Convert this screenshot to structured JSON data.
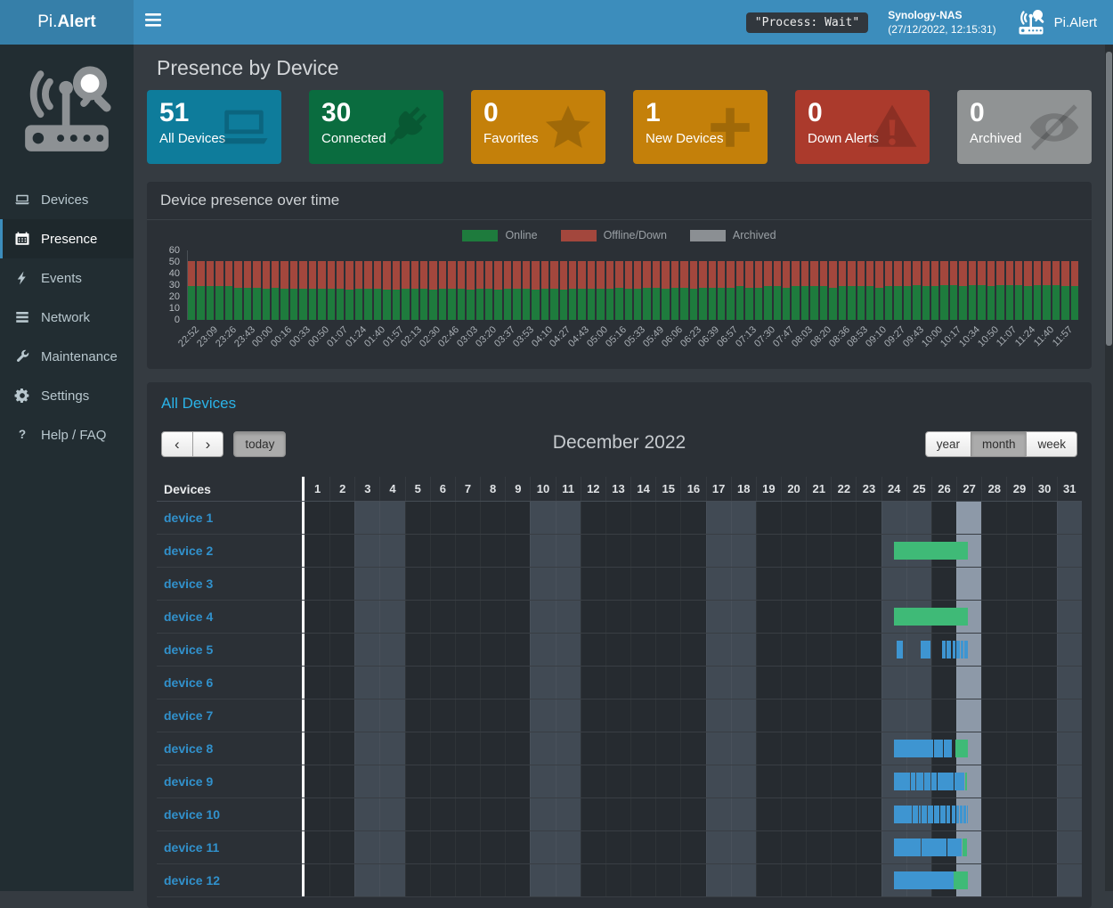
{
  "header": {
    "brand_prefix": "Pi.",
    "brand_bold": "Alert",
    "process_status": "\"Process: Wait\"",
    "host_name": "Synology-NAS",
    "host_time": "(27/12/2022, 12:15:31)",
    "app_name": "Pi.Alert"
  },
  "sidebar": {
    "items": [
      {
        "label": "Devices",
        "icon": "devices-icon",
        "active": false
      },
      {
        "label": "Presence",
        "icon": "presence-icon",
        "active": true
      },
      {
        "label": "Events",
        "icon": "events-icon",
        "active": false
      },
      {
        "label": "Network",
        "icon": "network-icon",
        "active": false
      },
      {
        "label": "Maintenance",
        "icon": "maintenance-icon",
        "active": false
      },
      {
        "label": "Settings",
        "icon": "settings-icon",
        "active": false
      },
      {
        "label": "Help / FAQ",
        "icon": "help-icon",
        "active": false
      }
    ]
  },
  "page": {
    "title": "Presence by Device"
  },
  "stats": [
    {
      "value": "51",
      "label": "All Devices",
      "color": "#0e7c9b",
      "icon": "laptop-icon"
    },
    {
      "value": "30",
      "label": "Connected",
      "color": "#0a6c3f",
      "icon": "plug-icon"
    },
    {
      "value": "0",
      "label": "Favorites",
      "color": "#c4800a",
      "icon": "star-icon"
    },
    {
      "value": "1",
      "label": "New Devices",
      "color": "#c4800a",
      "icon": "plus-icon"
    },
    {
      "value": "0",
      "label": "Down Alerts",
      "color": "#ab3a2c",
      "icon": "warning-icon"
    },
    {
      "value": "0",
      "label": "Archived",
      "color": "#909394",
      "icon": "eye-slash-icon"
    }
  ],
  "chart_panel": {
    "title": "Device presence over time"
  },
  "chart_data": {
    "type": "bar",
    "stacked": true,
    "title": "Device presence over time",
    "xlabel": "",
    "ylabel": "",
    "ylim": [
      0,
      60
    ],
    "yticks": [
      0,
      10,
      20,
      30,
      40,
      50,
      60
    ],
    "legend_position": "top-center",
    "grid": false,
    "bars_per_label": 2,
    "x_labels": [
      "22:52",
      "23:09",
      "23:26",
      "23:43",
      "00:00",
      "00:16",
      "00:33",
      "00:50",
      "01:07",
      "01:24",
      "01:40",
      "01:57",
      "02:13",
      "02:30",
      "02:46",
      "03:03",
      "03:20",
      "03:37",
      "03:53",
      "04:10",
      "04:27",
      "04:43",
      "05:00",
      "05:16",
      "05:33",
      "05:49",
      "06:06",
      "06:23",
      "06:39",
      "06:57",
      "07:13",
      "07:30",
      "07:47",
      "08:03",
      "08:20",
      "08:36",
      "08:53",
      "09:10",
      "09:27",
      "09:43",
      "10:00",
      "10:17",
      "10:34",
      "10:50",
      "11:07",
      "11:24",
      "11:40",
      "11:57"
    ],
    "series": [
      {
        "name": "Online",
        "color": "#1e7b3d",
        "values": [
          29,
          29,
          29,
          29,
          29,
          28,
          28,
          28,
          27,
          28,
          27,
          27,
          27,
          27,
          27,
          27,
          27,
          26,
          27,
          27,
          27,
          26,
          26,
          27,
          27,
          27,
          26,
          27,
          27,
          27,
          26,
          27,
          27,
          26,
          27,
          27,
          27,
          26,
          27,
          27,
          26,
          27,
          27,
          27,
          27,
          27,
          28,
          27,
          27,
          28,
          28,
          27,
          28,
          28,
          27,
          28,
          28,
          28,
          28,
          29,
          28,
          28,
          29,
          29,
          28,
          29,
          29,
          29,
          29,
          28,
          29,
          29,
          29,
          29,
          28,
          29,
          29,
          29,
          30,
          29,
          29,
          30,
          30,
          29,
          30,
          30,
          29,
          30,
          30,
          30,
          29,
          30,
          30,
          30,
          29,
          29
        ]
      },
      {
        "name": "Offline/Down",
        "color": "#a3473d",
        "values": [
          22,
          22,
          22,
          22,
          22,
          23,
          23,
          23,
          24,
          23,
          24,
          24,
          24,
          24,
          24,
          24,
          24,
          25,
          24,
          24,
          24,
          25,
          25,
          24,
          24,
          24,
          25,
          24,
          24,
          24,
          25,
          24,
          24,
          25,
          24,
          24,
          24,
          25,
          24,
          24,
          25,
          24,
          24,
          24,
          24,
          24,
          23,
          24,
          24,
          23,
          23,
          24,
          23,
          23,
          24,
          23,
          23,
          23,
          23,
          22,
          23,
          23,
          22,
          22,
          23,
          22,
          22,
          22,
          22,
          23,
          22,
          22,
          22,
          22,
          23,
          22,
          22,
          22,
          21,
          22,
          22,
          21,
          21,
          22,
          21,
          21,
          22,
          21,
          21,
          21,
          22,
          21,
          21,
          21,
          22,
          22
        ]
      },
      {
        "name": "Archived",
        "color": "#8b8f93",
        "values": [
          0,
          0,
          0,
          0,
          0,
          0,
          0,
          0,
          0,
          0,
          0,
          0,
          0,
          0,
          0,
          0,
          0,
          0,
          0,
          0,
          0,
          0,
          0,
          0,
          0,
          0,
          0,
          0,
          0,
          0,
          0,
          0,
          0,
          0,
          0,
          0,
          0,
          0,
          0,
          0,
          0,
          0,
          0,
          0,
          0,
          0,
          0,
          0,
          0,
          0,
          0,
          0,
          0,
          0,
          0,
          0,
          0,
          0,
          0,
          0,
          0,
          0,
          0,
          0,
          0,
          0,
          0,
          0,
          0,
          0,
          0,
          0,
          0,
          0,
          0,
          0,
          0,
          0,
          0,
          0,
          0,
          0,
          0,
          0,
          0,
          0,
          0,
          0,
          0,
          0,
          0,
          0,
          0,
          0,
          0,
          0
        ]
      }
    ]
  },
  "calendar": {
    "title": "All Devices",
    "toolbar": {
      "prev": "‹",
      "next": "›",
      "today_label": "today",
      "view_title": "December 2022",
      "views": [
        "year",
        "month",
        "week"
      ],
      "active_view": "month"
    },
    "table": {
      "devices_header": "Devices",
      "days": [
        1,
        2,
        3,
        4,
        5,
        6,
        7,
        8,
        9,
        10,
        11,
        12,
        13,
        14,
        15,
        16,
        17,
        18,
        19,
        20,
        21,
        22,
        23,
        24,
        25,
        26,
        27,
        28,
        29,
        30,
        31
      ],
      "weekend_days": [
        3,
        4,
        10,
        11,
        17,
        18,
        24,
        25,
        31
      ],
      "today_day": 27
    },
    "devices": [
      {
        "name": "device 1",
        "segments": []
      },
      {
        "name": "device 2",
        "segments": [
          {
            "from": 24.52,
            "to": 27.47,
            "color": "green"
          }
        ]
      },
      {
        "name": "device 3",
        "segments": []
      },
      {
        "name": "device 4",
        "segments": [
          {
            "from": 24.52,
            "to": 27.47,
            "color": "green"
          }
        ]
      },
      {
        "name": "device 5",
        "segments": [
          {
            "from": 24.6,
            "to": 24.85,
            "color": "blue"
          },
          {
            "from": 25.58,
            "to": 25.97,
            "color": "blue"
          },
          {
            "from": 26.42,
            "to": 26.56,
            "color": "blue"
          },
          {
            "from": 26.61,
            "to": 26.79,
            "color": "blue"
          },
          {
            "from": 26.86,
            "to": 26.96,
            "color": "blue"
          },
          {
            "from": 27.01,
            "to": 27.13,
            "color": "blue"
          },
          {
            "from": 27.17,
            "to": 27.27,
            "color": "blue"
          },
          {
            "from": 27.31,
            "to": 27.46,
            "color": "blue"
          }
        ]
      },
      {
        "name": "device 6",
        "segments": []
      },
      {
        "name": "device 7",
        "segments": []
      },
      {
        "name": "device 8",
        "segments": [
          {
            "from": 24.52,
            "to": 25.7,
            "color": "blue"
          },
          {
            "from": 25.73,
            "to": 26.08,
            "color": "blue"
          },
          {
            "from": 26.11,
            "to": 26.45,
            "color": "blue"
          },
          {
            "from": 26.48,
            "to": 26.82,
            "color": "blue"
          },
          {
            "from": 26.95,
            "to": 27.45,
            "color": "green"
          }
        ]
      },
      {
        "name": "device 9",
        "segments": [
          {
            "from": 24.52,
            "to": 25.15,
            "color": "blue"
          },
          {
            "from": 25.18,
            "to": 25.36,
            "color": "blue"
          },
          {
            "from": 25.39,
            "to": 25.68,
            "color": "blue"
          },
          {
            "from": 25.71,
            "to": 25.98,
            "color": "blue"
          },
          {
            "from": 26.01,
            "to": 26.21,
            "color": "blue"
          },
          {
            "from": 26.24,
            "to": 26.59,
            "color": "blue"
          },
          {
            "from": 26.62,
            "to": 26.89,
            "color": "blue"
          },
          {
            "from": 26.92,
            "to": 27.12,
            "color": "blue"
          },
          {
            "from": 27.15,
            "to": 27.31,
            "color": "blue"
          },
          {
            "from": 27.34,
            "to": 27.42,
            "color": "green"
          }
        ]
      },
      {
        "name": "device 10",
        "segments": [
          {
            "from": 24.52,
            "to": 25.22,
            "color": "blue"
          },
          {
            "from": 25.26,
            "to": 25.46,
            "color": "blue"
          },
          {
            "from": 25.5,
            "to": 25.56,
            "color": "blue"
          },
          {
            "from": 25.6,
            "to": 25.82,
            "color": "blue"
          },
          {
            "from": 25.86,
            "to": 26.06,
            "color": "blue"
          },
          {
            "from": 26.1,
            "to": 26.31,
            "color": "blue"
          },
          {
            "from": 26.35,
            "to": 26.56,
            "color": "blue"
          },
          {
            "from": 26.6,
            "to": 26.76,
            "color": "blue"
          },
          {
            "from": 26.8,
            "to": 26.96,
            "color": "blue"
          },
          {
            "from": 27.0,
            "to": 27.1,
            "color": "blue"
          },
          {
            "from": 27.14,
            "to": 27.25,
            "color": "blue"
          },
          {
            "from": 27.29,
            "to": 27.4,
            "color": "blue"
          },
          {
            "from": 27.42,
            "to": 27.47,
            "color": "blue"
          }
        ]
      },
      {
        "name": "device 11",
        "segments": [
          {
            "from": 24.52,
            "to": 25.56,
            "color": "blue"
          },
          {
            "from": 25.6,
            "to": 26.61,
            "color": "blue"
          },
          {
            "from": 26.65,
            "to": 27.2,
            "color": "blue"
          },
          {
            "from": 27.25,
            "to": 27.42,
            "color": "green"
          }
        ]
      },
      {
        "name": "device 12",
        "segments": [
          {
            "from": 24.52,
            "to": 26.87,
            "color": "blue"
          },
          {
            "from": 26.9,
            "to": 27.45,
            "color": "green"
          }
        ]
      }
    ]
  },
  "colors": {
    "header": "#3c8dbc",
    "header_logo": "#367fa9",
    "sidebar": "#222d32",
    "sidebar_accent": "#3c8dbc",
    "page_bg": "#353b41",
    "panel_bg": "#2b3036",
    "section_title": "#2ab3e8",
    "device_link": "#3191cc",
    "cal_green": "#3fba77",
    "cal_blue": "#3e95d1",
    "weekend_bg": "#414a54",
    "today_bg": "#8d99a8"
  }
}
